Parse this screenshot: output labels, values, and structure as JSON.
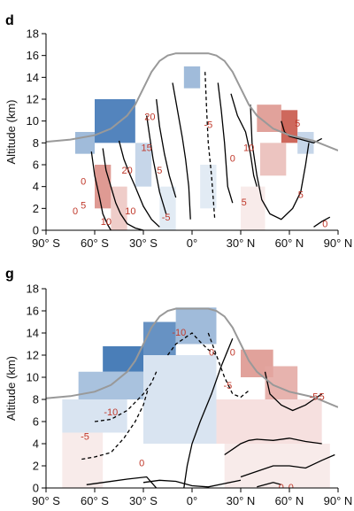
{
  "chart_data": [
    {
      "type": "heatmap",
      "panel_label": "d",
      "xlabel": "",
      "ylabel": "Altitude (km)",
      "xlim": [
        -90,
        90
      ],
      "ylim": [
        0,
        18
      ],
      "xticks": [
        -90,
        -60,
        -30,
        0,
        30,
        60,
        90
      ],
      "xtick_labels": [
        "90° S",
        "60° S",
        "30° S",
        "0°",
        "30° N",
        "60° N",
        "90° N"
      ],
      "yticks": [
        0,
        2,
        4,
        6,
        8,
        10,
        12,
        14,
        16,
        18
      ],
      "ytick_labels": [
        "0",
        "2",
        "4",
        "6",
        "8",
        "10",
        "12",
        "14",
        "16",
        "18"
      ],
      "grid": false,
      "colors": {
        "positive": "#c0392b",
        "negative": "#1f5fa8",
        "tropopause": "#999999",
        "contour": "#000000",
        "label": "#c0392b"
      },
      "tropopause": {
        "x": [
          -90,
          -75,
          -60,
          -50,
          -40,
          -35,
          -30,
          -25,
          -20,
          -15,
          -10,
          0,
          10,
          15,
          20,
          25,
          30,
          35,
          40,
          50,
          60,
          75,
          90
        ],
        "y": [
          8.1,
          8.3,
          8.7,
          9.3,
          10.5,
          11.5,
          13,
          14.5,
          15.5,
          16,
          16.2,
          16.2,
          16.2,
          16,
          15.5,
          14.5,
          13,
          11.5,
          10.5,
          9.3,
          8.7,
          8.2,
          7.3
        ]
      },
      "shading": [
        {
          "x0": -60,
          "x1": -35,
          "y0": 8,
          "y1": 12,
          "value": -0.9
        },
        {
          "x0": -72,
          "x1": -60,
          "y0": 7,
          "y1": 9,
          "value": -0.5
        },
        {
          "x0": -35,
          "x1": -25,
          "y0": 4,
          "y1": 8,
          "value": -0.3
        },
        {
          "x0": -60,
          "x1": -50,
          "y0": 2,
          "y1": 6,
          "value": 0.6
        },
        {
          "x0": -50,
          "x1": -40,
          "y0": 0,
          "y1": 4,
          "value": 0.3
        },
        {
          "x0": -20,
          "x1": -10,
          "y0": 0,
          "y1": 4,
          "value": -0.15
        },
        {
          "x0": -5,
          "x1": 5,
          "y0": 13,
          "y1": 15,
          "value": -0.5
        },
        {
          "x0": 5,
          "x1": 15,
          "y0": 2,
          "y1": 6,
          "value": -0.15
        },
        {
          "x0": 40,
          "x1": 55,
          "y0": 9,
          "y1": 11.5,
          "value": 0.55
        },
        {
          "x0": 55,
          "x1": 65,
          "y0": 8,
          "y1": 11,
          "value": 0.9
        },
        {
          "x0": 65,
          "x1": 75,
          "y0": 7,
          "y1": 9,
          "value": -0.3
        },
        {
          "x0": 42,
          "x1": 58,
          "y0": 5,
          "y1": 8,
          "value": 0.35
        },
        {
          "x0": 30,
          "x1": 45,
          "y0": 0,
          "y1": 4,
          "value": 0.12
        }
      ],
      "contours": [
        {
          "style": "solid",
          "x": [
            -62,
            -60,
            -57,
            -55,
            -52,
            -50
          ],
          "y": [
            7.2,
            5,
            3,
            1.5,
            0.5,
            0
          ]
        },
        {
          "style": "solid",
          "x": [
            -55,
            -53,
            -50,
            -47,
            -44,
            -40,
            -35,
            -30
          ],
          "y": [
            7.5,
            5.5,
            4,
            2.5,
            1.5,
            0.6,
            0.2,
            0
          ]
        },
        {
          "style": "solid",
          "x": [
            -45,
            -42,
            -38,
            -35,
            -30,
            -25,
            -20
          ],
          "y": [
            8.2,
            6.5,
            5,
            4,
            2.2,
            1,
            0.3
          ]
        },
        {
          "style": "solid",
          "x": [
            -28,
            -26,
            -24,
            -22,
            -20,
            -16
          ],
          "y": [
            10.5,
            8.5,
            6.5,
            5,
            3.5,
            1.5
          ]
        },
        {
          "style": "solid",
          "x": [
            -22,
            -20,
            -17,
            -14,
            -10
          ],
          "y": [
            12,
            9.5,
            7,
            5,
            3
          ]
        },
        {
          "style": "solid",
          "x": [
            -12,
            -9,
            -6,
            -4,
            -2,
            -1
          ],
          "y": [
            13.5,
            11,
            8.5,
            6.5,
            4,
            1
          ]
        },
        {
          "style": "dashed",
          "x": [
            8,
            9,
            10,
            12,
            14
          ],
          "y": [
            14.5,
            11,
            8,
            5,
            1
          ]
        },
        {
          "style": "solid",
          "x": [
            16,
            18,
            20,
            21,
            22,
            25
          ],
          "y": [
            13.5,
            11,
            8,
            6,
            4,
            2.5
          ]
        },
        {
          "style": "solid",
          "x": [
            24,
            28,
            33,
            36,
            38,
            40
          ],
          "y": [
            12.5,
            10.5,
            9,
            7,
            5,
            4
          ]
        },
        {
          "style": "solid",
          "x": [
            36,
            37,
            40,
            43,
            48,
            55,
            62,
            67,
            70,
            72
          ],
          "y": [
            11.5,
            8,
            5,
            2.8,
            1.5,
            1,
            2,
            3.5,
            6,
            8
          ]
        },
        {
          "style": "solid",
          "x": [
            55,
            57,
            60,
            65,
            70,
            75,
            80
          ],
          "y": [
            10,
            9,
            8.6,
            8.4,
            8.2,
            8,
            8.4
          ]
        },
        {
          "style": "solid",
          "x": [
            75,
            80,
            85
          ],
          "y": [
            0.3,
            0.8,
            1.2
          ]
        }
      ],
      "contour_labels": [
        {
          "text": "0",
          "x": -67,
          "y": 4.5
        },
        {
          "text": "0",
          "x": -72,
          "y": 1.8
        },
        {
          "text": "5",
          "x": -67,
          "y": 2.3
        },
        {
          "text": "10",
          "x": -53,
          "y": 0.8
        },
        {
          "text": "10",
          "x": -38,
          "y": 1.8
        },
        {
          "text": "20",
          "x": -40,
          "y": 5.5
        },
        {
          "text": "15",
          "x": -28,
          "y": 7.6
        },
        {
          "text": "20",
          "x": -26,
          "y": 10.4
        },
        {
          "text": "5",
          "x": -20,
          "y": 5.5
        },
        {
          "text": "-5",
          "x": -16,
          "y": 1.2
        },
        {
          "text": "-5",
          "x": 10,
          "y": 9.7
        },
        {
          "text": "0",
          "x": 25,
          "y": 6.6
        },
        {
          "text": "10",
          "x": 35,
          "y": 7.6
        },
        {
          "text": "5",
          "x": 32,
          "y": 2.6
        },
        {
          "text": "5",
          "x": 67,
          "y": 3.3
        },
        {
          "text": "0",
          "x": 82,
          "y": 0.6
        },
        {
          "text": "5",
          "x": 65,
          "y": 9.8
        }
      ]
    },
    {
      "type": "heatmap",
      "panel_label": "g",
      "xlabel": "",
      "ylabel": "Altitude (km)",
      "xlim": [
        -90,
        90
      ],
      "ylim": [
        0,
        18
      ],
      "xticks": [
        -90,
        -60,
        -30,
        0,
        30,
        60,
        90
      ],
      "xtick_labels": [
        "90° S",
        "60° S",
        "30° S",
        "0°",
        "30° N",
        "60° N",
        "90° N"
      ],
      "yticks": [
        0,
        2,
        4,
        6,
        8,
        10,
        12,
        14,
        16,
        18
      ],
      "ytick_labels": [
        "0",
        "2",
        "4",
        "6",
        "8",
        "10",
        "12",
        "14",
        "16",
        "18"
      ],
      "grid": false,
      "colors": {
        "positive": "#c0392b",
        "negative": "#1f5fa8",
        "tropopause": "#999999",
        "contour": "#000000",
        "label": "#c0392b"
      },
      "tropopause": {
        "x": [
          -90,
          -75,
          -60,
          -50,
          -40,
          -35,
          -30,
          -25,
          -20,
          -15,
          -10,
          0,
          10,
          15,
          20,
          25,
          30,
          35,
          40,
          50,
          60,
          75,
          90
        ],
        "y": [
          8.1,
          8.3,
          8.7,
          9.3,
          10.5,
          11.5,
          13,
          14.5,
          15.5,
          16,
          16.2,
          16.2,
          16.2,
          16,
          15.5,
          14.5,
          13,
          11.5,
          10.5,
          9.3,
          8.7,
          8.2,
          7.3
        ]
      },
      "shading": [
        {
          "x0": -55,
          "x1": -30,
          "y0": 10.5,
          "y1": 12.8,
          "value": -0.95
        },
        {
          "x0": -30,
          "x1": -10,
          "y0": 12,
          "y1": 15,
          "value": -0.8
        },
        {
          "x0": -10,
          "x1": 15,
          "y0": 13,
          "y1": 16.3,
          "value": -0.5
        },
        {
          "x0": -70,
          "x1": -30,
          "y0": 8,
          "y1": 10.5,
          "value": -0.45
        },
        {
          "x0": -80,
          "x1": -40,
          "y0": 5,
          "y1": 8,
          "value": -0.2
        },
        {
          "x0": -30,
          "x1": 15,
          "y0": 4,
          "y1": 12,
          "value": -0.2
        },
        {
          "x0": 30,
          "x1": 50,
          "y0": 10,
          "y1": 12.5,
          "value": 0.55
        },
        {
          "x0": 45,
          "x1": 65,
          "y0": 8,
          "y1": 11,
          "value": 0.45
        },
        {
          "x0": 15,
          "x1": 80,
          "y0": 4,
          "y1": 8,
          "value": 0.18
        },
        {
          "x0": 20,
          "x1": 85,
          "y0": 0,
          "y1": 4,
          "value": 0.12
        },
        {
          "x0": -80,
          "x1": -55,
          "y0": 0,
          "y1": 5,
          "value": 0.12
        }
      ],
      "contours": [
        {
          "style": "solid",
          "x": [
            -65,
            -55,
            -40,
            -28,
            -25,
            -22
          ],
          "y": [
            0.3,
            0.5,
            0.8,
            1,
            0.5,
            0
          ]
        },
        {
          "style": "dashed",
          "x": [
            -68,
            -60,
            -50,
            -42,
            -35,
            -30,
            -27
          ],
          "y": [
            2.6,
            2.8,
            3.2,
            4.5,
            6,
            7.5,
            9
          ]
        },
        {
          "style": "dashed",
          "x": [
            -60,
            -50,
            -40,
            -30,
            -25,
            -22
          ],
          "y": [
            6,
            6.2,
            7,
            8.5,
            9.5,
            10.5
          ]
        },
        {
          "style": "solid",
          "x": [
            -30,
            -20,
            -10,
            0,
            10,
            20,
            30
          ],
          "y": [
            0.5,
            0.7,
            0.6,
            0.2,
            0.1,
            0.4,
            0.7
          ]
        },
        {
          "style": "solid",
          "x": [
            -5,
            -3,
            0,
            5,
            12,
            18,
            25
          ],
          "y": [
            0,
            2,
            4,
            6,
            8.5,
            11,
            13.5
          ]
        },
        {
          "style": "dashed",
          "x": [
            -15,
            -10,
            -5,
            0,
            5,
            10,
            15
          ],
          "y": [
            12,
            13,
            13.5,
            14,
            13.2,
            12.5,
            12
          ]
        },
        {
          "style": "dashed",
          "x": [
            10,
            15,
            20,
            25,
            30,
            35
          ],
          "y": [
            14,
            12,
            10,
            8.5,
            8.2,
            8.8
          ]
        },
        {
          "style": "solid",
          "x": [
            20,
            25,
            30,
            35,
            40,
            50,
            60,
            70,
            80
          ],
          "y": [
            3,
            3.5,
            4,
            4.3,
            4.4,
            4.3,
            4.5,
            4.2,
            4
          ]
        },
        {
          "style": "solid",
          "x": [
            45,
            48,
            55,
            62,
            70,
            75,
            80
          ],
          "y": [
            10.5,
            8.5,
            7.5,
            7,
            7.5,
            8,
            8.5
          ]
        },
        {
          "style": "solid",
          "x": [
            30,
            40,
            50,
            60,
            70,
            80,
            88
          ],
          "y": [
            1,
            1.5,
            2,
            2,
            1.8,
            2.5,
            3
          ]
        },
        {
          "style": "solid",
          "x": [
            40,
            45,
            50,
            55
          ],
          "y": [
            0.1,
            0.3,
            0.5,
            0.3
          ]
        }
      ],
      "contour_labels": [
        {
          "text": "-10",
          "x": -50,
          "y": 6.9
        },
        {
          "text": "-5",
          "x": -66,
          "y": 4.7
        },
        {
          "text": "0",
          "x": -31,
          "y": 2.3
        },
        {
          "text": "-10",
          "x": -8,
          "y": 14.1
        },
        {
          "text": "0",
          "x": 12,
          "y": 12.3
        },
        {
          "text": "0",
          "x": 25,
          "y": 12.3
        },
        {
          "text": "-5",
          "x": 22,
          "y": 9.3
        },
        {
          "text": "-5",
          "x": 75,
          "y": 8.3
        },
        {
          "text": "5",
          "x": 80,
          "y": 8.3
        },
        {
          "text": "0",
          "x": 55,
          "y": 0.1
        },
        {
          "text": "0",
          "x": 61,
          "y": 0.1
        }
      ]
    }
  ]
}
